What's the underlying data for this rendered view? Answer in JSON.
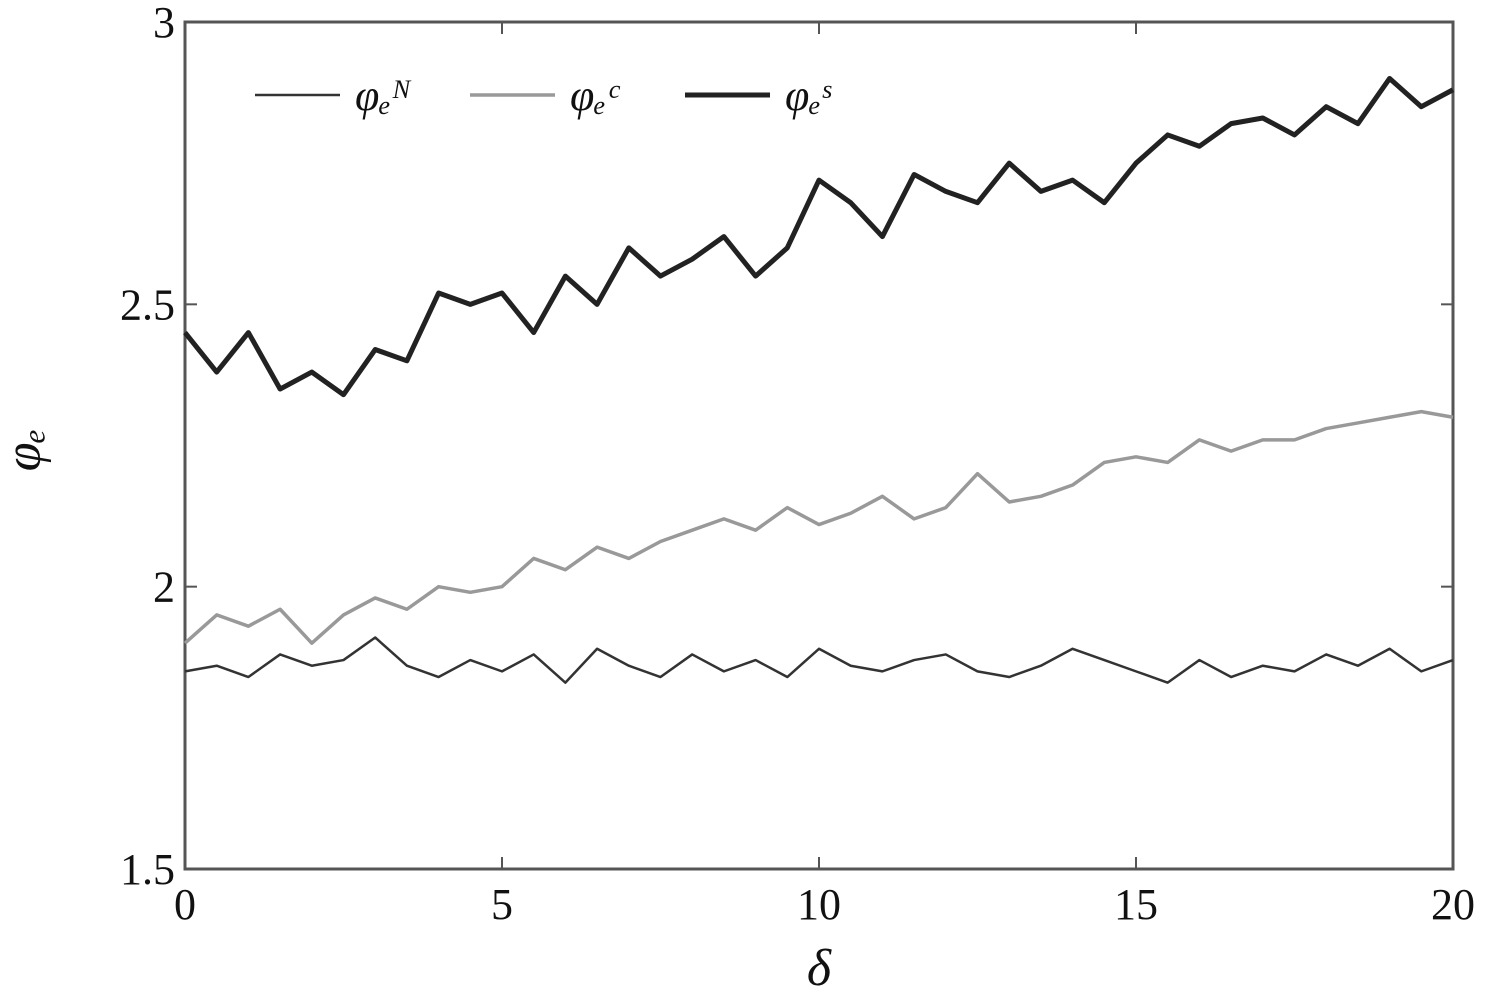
{
  "chart_data": {
    "type": "line",
    "xlabel": "δ",
    "ylabel": "φₑ",
    "x": [
      0,
      0.5,
      1,
      1.5,
      2,
      2.5,
      3,
      3.5,
      4,
      4.5,
      5,
      5.5,
      6,
      6.5,
      7,
      7.5,
      8,
      8.5,
      9,
      9.5,
      10,
      10.5,
      11,
      11.5,
      12,
      12.5,
      13,
      13.5,
      14,
      14.5,
      15,
      15.5,
      16,
      16.5,
      17,
      17.5,
      18,
      18.5,
      19,
      19.5,
      20
    ],
    "series": [
      {
        "name": "φₑᴺ",
        "color": "#333333",
        "values": [
          1.85,
          1.86,
          1.84,
          1.88,
          1.86,
          1.87,
          1.91,
          1.86,
          1.84,
          1.87,
          1.85,
          1.88,
          1.83,
          1.89,
          1.86,
          1.84,
          1.88,
          1.85,
          1.87,
          1.84,
          1.89,
          1.86,
          1.85,
          1.87,
          1.88,
          1.85,
          1.84,
          1.86,
          1.89,
          1.87,
          1.85,
          1.83,
          1.87,
          1.84,
          1.86,
          1.85,
          1.88,
          1.86,
          1.89,
          1.85,
          1.87
        ]
      },
      {
        "name": "φₑᶜ",
        "color": "#999999",
        "values": [
          1.9,
          1.95,
          1.93,
          1.96,
          1.9,
          1.95,
          1.98,
          1.96,
          2.0,
          1.99,
          2.0,
          2.05,
          2.03,
          2.07,
          2.05,
          2.08,
          2.1,
          2.12,
          2.1,
          2.14,
          2.11,
          2.13,
          2.16,
          2.12,
          2.14,
          2.2,
          2.15,
          2.16,
          2.18,
          2.22,
          2.23,
          2.22,
          2.26,
          2.24,
          2.26,
          2.26,
          2.28,
          2.29,
          2.3,
          2.31,
          2.3
        ]
      },
      {
        "name": "φₑˢ",
        "color": "#222222",
        "values": [
          2.45,
          2.38,
          2.45,
          2.35,
          2.38,
          2.34,
          2.42,
          2.4,
          2.52,
          2.5,
          2.52,
          2.45,
          2.55,
          2.5,
          2.6,
          2.55,
          2.58,
          2.62,
          2.55,
          2.6,
          2.72,
          2.68,
          2.62,
          2.73,
          2.7,
          2.68,
          2.75,
          2.7,
          2.72,
          2.68,
          2.75,
          2.8,
          2.78,
          2.82,
          2.83,
          2.8,
          2.85,
          2.82,
          2.9,
          2.85,
          2.88
        ]
      }
    ],
    "xlim": [
      0,
      20
    ],
    "xticks": [
      0,
      5,
      10,
      15,
      20
    ],
    "ylim": [
      1.5,
      3
    ],
    "yticks": [
      1.5,
      2,
      2.5,
      3
    ],
    "legend": "upper left"
  }
}
